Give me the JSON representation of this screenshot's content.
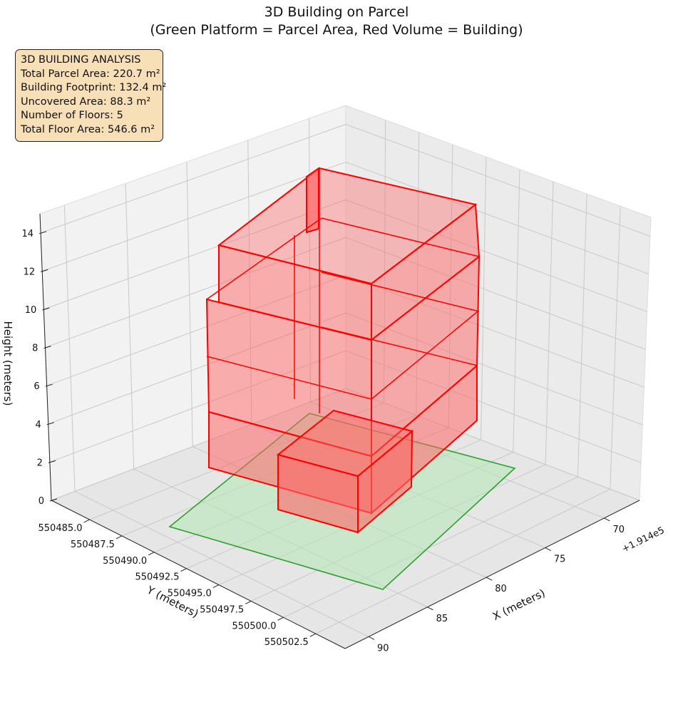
{
  "chart_data": {
    "type": "3d-bar",
    "title": "3D Building on Parcel",
    "subtitle": "(Green Platform = Parcel Area, Red Volume = Building)",
    "xlabel": "X (meters)",
    "ylabel": "Y (meters)",
    "zlabel": "Height (meters)",
    "x_offset_label": "+1.914e5",
    "x_ticks": [
      "70",
      "75",
      "80",
      "85",
      "90"
    ],
    "y_ticks": [
      "550485.0",
      "550487.5",
      "550490.0",
      "550492.5",
      "550495.0",
      "550497.5",
      "550500.0",
      "550502.5"
    ],
    "z_ticks": [
      "0",
      "2",
      "4",
      "6",
      "8",
      "10",
      "12",
      "14"
    ],
    "zlim": [
      0,
      15
    ],
    "grid": true,
    "colors": {
      "parcel": "#2ca02c",
      "parcel_fill": "#b5e8b5",
      "building": "#ff0000",
      "building_fill": "#ff6666"
    },
    "parcel_area_m2": 220.7,
    "building_footprint_m2": 132.4,
    "floors": 5,
    "total_floor_area_m2": 546.6
  },
  "info_box": {
    "title": "3D BUILDING ANALYSIS",
    "lines": [
      "Total Parcel Area: 220.7 m²",
      "Building Footprint: 132.4 m²",
      "Uncovered Area: 88.3 m²",
      "Number of Floors: 5",
      "Total Floor Area: 546.6 m²"
    ]
  }
}
